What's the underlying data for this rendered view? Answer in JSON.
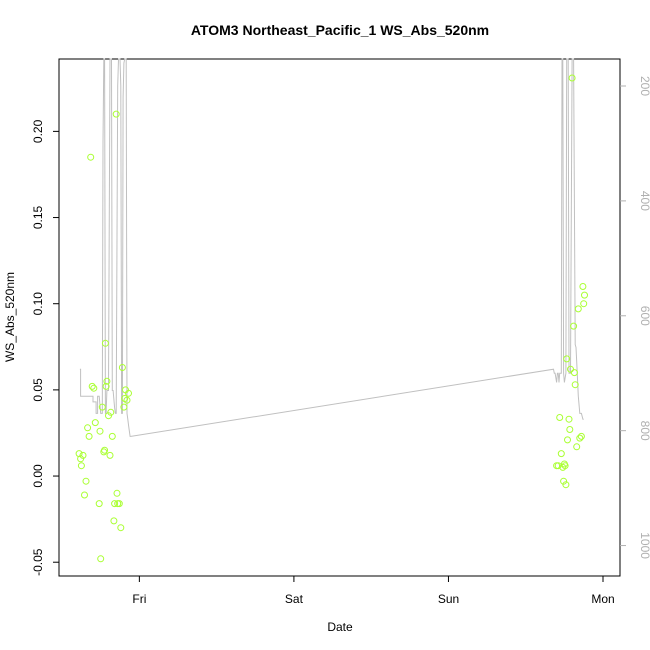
{
  "chart_data": {
    "type": "scatter",
    "title": "ATOM3 Northeast_Pacific_1 WS_Abs_520nm",
    "xlabel": "Date",
    "ylabel": "WS_Abs_520nm",
    "x_ticks": [
      "Fri",
      "Sat",
      "Sun",
      "Mon"
    ],
    "x_tick_pos": [
      1.0,
      2.0,
      3.0,
      4.0
    ],
    "xlim": [
      0.48,
      4.11
    ],
    "ylim": [
      -0.058,
      0.242
    ],
    "y_ticks": [
      -0.05,
      0.0,
      0.05,
      0.1,
      0.15,
      0.2
    ],
    "y_tick_labels": [
      "-0.05",
      "0.00",
      "0.05",
      "0.10",
      "0.15",
      "0.20"
    ],
    "y2_ticks": [
      200,
      400,
      600,
      800,
      1000
    ],
    "y2_tick_labels": [
      "200",
      "400",
      "600",
      "800",
      "1000"
    ],
    "y2lim": [
      1053,
      153
    ],
    "grid": false,
    "colors": {
      "points": "#aaff33",
      "line": "#c0c0c0",
      "right_axis": "#b0b0b0",
      "frame": "#000000"
    },
    "series": [
      {
        "marker": "open-circle",
        "x": [
          0.61,
          0.62,
          0.625,
          0.635,
          0.645,
          0.655,
          0.665,
          0.675,
          0.685,
          0.695,
          0.705,
          0.715,
          0.74,
          0.745,
          0.75,
          0.76,
          0.77,
          0.775,
          0.78,
          0.785,
          0.79,
          0.8,
          0.81,
          0.815,
          0.825,
          0.835,
          0.84,
          0.85,
          0.855,
          0.86,
          0.87,
          0.88,
          0.89,
          0.9,
          0.905,
          0.91,
          0.92,
          0.93,
          3.7,
          3.71,
          3.72,
          3.73,
          3.74,
          3.745,
          3.75,
          3.755,
          3.76,
          3.765,
          3.77,
          3.78,
          3.785,
          3.79,
          3.8,
          3.81,
          3.815,
          3.82,
          3.83,
          3.84,
          3.85,
          3.86,
          3.87,
          3.875,
          3.88
        ],
        "y": [
          0.013,
          0.01,
          0.006,
          0.012,
          -0.011,
          -0.003,
          0.028,
          0.023,
          0.185,
          0.052,
          0.051,
          0.031,
          -0.016,
          0.026,
          -0.048,
          0.04,
          0.014,
          0.015,
          0.077,
          0.052,
          0.055,
          0.035,
          0.012,
          0.037,
          0.023,
          -0.026,
          -0.016,
          0.21,
          -0.01,
          -0.016,
          -0.016,
          -0.03,
          0.063,
          0.04,
          0.045,
          0.05,
          0.044,
          0.048,
          0.006,
          0.006,
          0.034,
          0.013,
          0.005,
          -0.003,
          0.007,
          0.006,
          -0.005,
          0.068,
          0.021,
          0.033,
          0.027,
          0.062,
          0.231,
          0.087,
          0.06,
          0.053,
          0.017,
          0.097,
          0.022,
          0.023,
          0.11,
          0.1,
          0.105
        ]
      },
      {
        "axis": "right",
        "x": [
          0.615,
          0.62,
          0.62,
          0.7,
          0.7,
          0.72,
          0.72,
          0.73,
          0.73,
          0.74,
          0.75,
          0.76,
          0.765,
          0.77,
          0.775,
          0.78,
          0.785,
          0.79,
          0.8,
          0.81,
          0.82,
          0.825,
          0.83,
          0.84,
          0.845,
          0.85,
          0.86,
          0.865,
          0.87,
          0.875,
          0.88,
          0.885,
          0.89,
          0.895,
          0.9,
          0.905,
          0.91,
          0.915,
          0.92,
          0.925,
          0.93,
          0.935,
          0.94,
          0.945,
          3.68,
          3.685,
          3.69,
          3.7,
          3.705,
          3.71,
          3.715,
          3.72,
          3.73,
          3.735,
          3.74,
          3.745,
          3.75,
          3.76,
          3.765,
          3.77,
          3.775,
          3.78,
          3.79,
          3.8,
          3.81,
          3.82,
          3.825,
          3.83,
          3.84,
          3.85,
          3.855,
          3.86,
          3.87,
          3.875
        ],
        "y": [
          693,
          693,
          740,
          740,
          750,
          750,
          770,
          770,
          740,
          740,
          770,
          770,
          300,
          150,
          150,
          770,
          770,
          730,
          730,
          150,
          150,
          730,
          730,
          760,
          770,
          770,
          200,
          150,
          150,
          150,
          200,
          770,
          770,
          220,
          160,
          150,
          150,
          150,
          770,
          780,
          790,
          800,
          810,
          810,
          693,
          700,
          700,
          716,
          700,
          700,
          716,
          700,
          700,
          150,
          150,
          700,
          716,
          700,
          150,
          150,
          150,
          700,
          700,
          150,
          150,
          650,
          655,
          680,
          740,
          770,
          770,
          770,
          780,
          780
        ]
      }
    ]
  }
}
